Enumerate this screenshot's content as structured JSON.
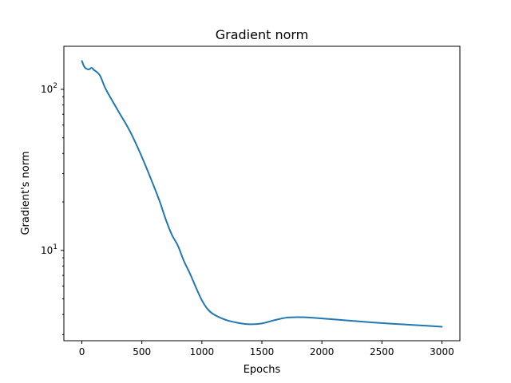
{
  "chart_data": {
    "type": "line",
    "title": "Gradient norm",
    "xlabel": "Epochs",
    "ylabel": "Gradient's norm",
    "xlim": [
      -150,
      3150
    ],
    "ylim": [
      2.75,
      185
    ],
    "yscale": "log",
    "grid": false,
    "x_ticks": [
      {
        "value": 0,
        "label": "0"
      },
      {
        "value": 500,
        "label": "500"
      },
      {
        "value": 1000,
        "label": "1000"
      },
      {
        "value": 1500,
        "label": "1500"
      },
      {
        "value": 2000,
        "label": "2000"
      },
      {
        "value": 2500,
        "label": "2500"
      },
      {
        "value": 3000,
        "label": "3000"
      }
    ],
    "y_major_ticks": [
      {
        "value": 10,
        "base": "10",
        "exp": "1"
      },
      {
        "value": 100,
        "base": "10",
        "exp": "2"
      }
    ],
    "y_minor_ticks": [
      3,
      4,
      5,
      6,
      7,
      8,
      9,
      20,
      30,
      40,
      50,
      60,
      70,
      80,
      90
    ],
    "series": [
      {
        "name": "gradient norm",
        "color": "#1f77b4",
        "x": [
          0,
          20,
          40,
          60,
          80,
          100,
          150,
          200,
          300,
          400,
          500,
          600,
          650,
          700,
          750,
          800,
          850,
          900,
          950,
          1000,
          1050,
          1100,
          1200,
          1300,
          1400,
          1500,
          1600,
          1700,
          1800,
          1900,
          2000,
          2200,
          2400,
          2600,
          2800,
          3000
        ],
        "y": [
          150,
          138,
          134,
          133,
          136,
          132,
          122,
          100,
          74,
          55,
          38,
          25,
          20,
          15.5,
          12.5,
          10.7,
          8.6,
          7.2,
          5.9,
          4.9,
          4.3,
          4.0,
          3.7,
          3.55,
          3.48,
          3.52,
          3.68,
          3.82,
          3.85,
          3.83,
          3.78,
          3.68,
          3.58,
          3.5,
          3.43,
          3.36
        ]
      }
    ]
  }
}
